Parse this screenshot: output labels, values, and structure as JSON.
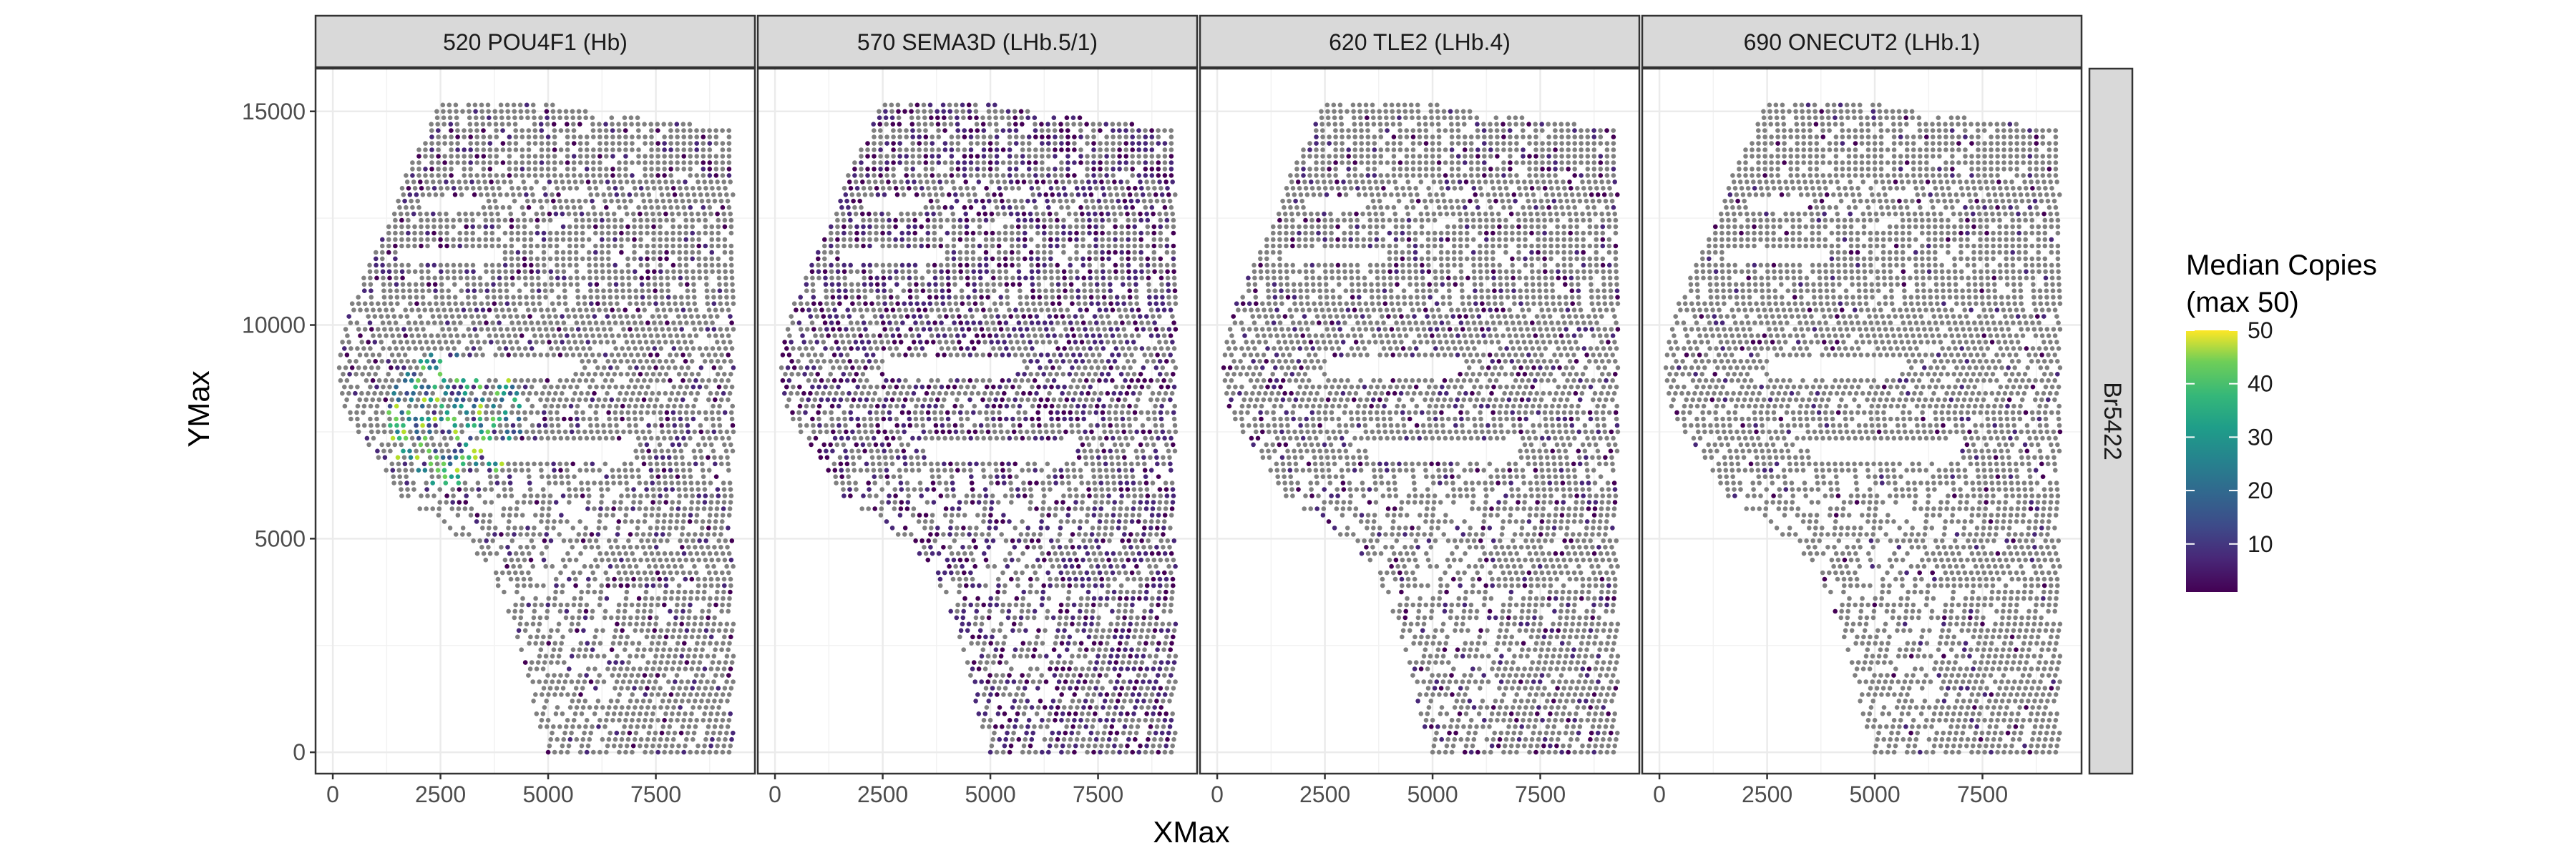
{
  "chart_data": {
    "type": "scatter",
    "xlabel": "XMax",
    "ylabel": "YMax",
    "xticks": [
      0,
      2500,
      5000,
      7500
    ],
    "xtick_labels": [
      "0",
      "2500",
      "5000",
      "7500"
    ],
    "yticks": [
      0,
      5000,
      10000,
      15000
    ],
    "ytick_labels": [
      "0",
      "5000",
      "10000",
      "15000"
    ],
    "xlim": [
      -400,
      9800
    ],
    "ylim": [
      -500,
      16000
    ],
    "row_strip": "Br5422",
    "grid": true,
    "legend": {
      "title": "Median Copies\n(max 50)",
      "position": "right",
      "min": 1,
      "max": 50,
      "ticks": [
        10,
        20,
        30,
        40,
        50
      ],
      "tick_labels": [
        "10",
        "20",
        "30",
        "40",
        "50"
      ],
      "colormap": "viridis",
      "zero_color": "#808080"
    },
    "panels": [
      {
        "title": "520 POU4F1 (Hb)",
        "expression_fraction": 0.16,
        "hotspot": {
          "x": 2800,
          "y": 7800,
          "radius": 1600,
          "level": 40
        }
      },
      {
        "title": "570 SEMA3D (LHb.5/1)",
        "expression_fraction": 0.45,
        "hotspot": null
      },
      {
        "title": "620 TLE2 (LHb.4)",
        "expression_fraction": 0.17,
        "hotspot": null
      },
      {
        "title": "690 ONECUT2 (LHb.1)",
        "expression_fraction": 0.07,
        "hotspot": null
      }
    ],
    "tissue_outline": {
      "right_x": 9300,
      "top_y": 15200,
      "bottom_y": 0,
      "left_boundary": [
        [
          0,
          5000
        ],
        [
          1000,
          4700
        ],
        [
          2000,
          4500
        ],
        [
          3000,
          4200
        ],
        [
          4000,
          3800
        ],
        [
          5000,
          3000
        ],
        [
          6000,
          1600
        ],
        [
          7000,
          1000
        ],
        [
          7500,
          600
        ],
        [
          8000,
          300
        ],
        [
          8500,
          200
        ],
        [
          9000,
          150
        ],
        [
          9500,
          200
        ],
        [
          10500,
          450
        ],
        [
          11500,
          900
        ],
        [
          12500,
          1400
        ],
        [
          13500,
          1700
        ],
        [
          14500,
          2200
        ],
        [
          15200,
          2500
        ]
      ],
      "top_edge": [
        [
          2500,
          15200
        ],
        [
          4500,
          15300
        ],
        [
          6000,
          15000
        ],
        [
          7500,
          14800
        ],
        [
          9300,
          14600
        ]
      ]
    }
  }
}
